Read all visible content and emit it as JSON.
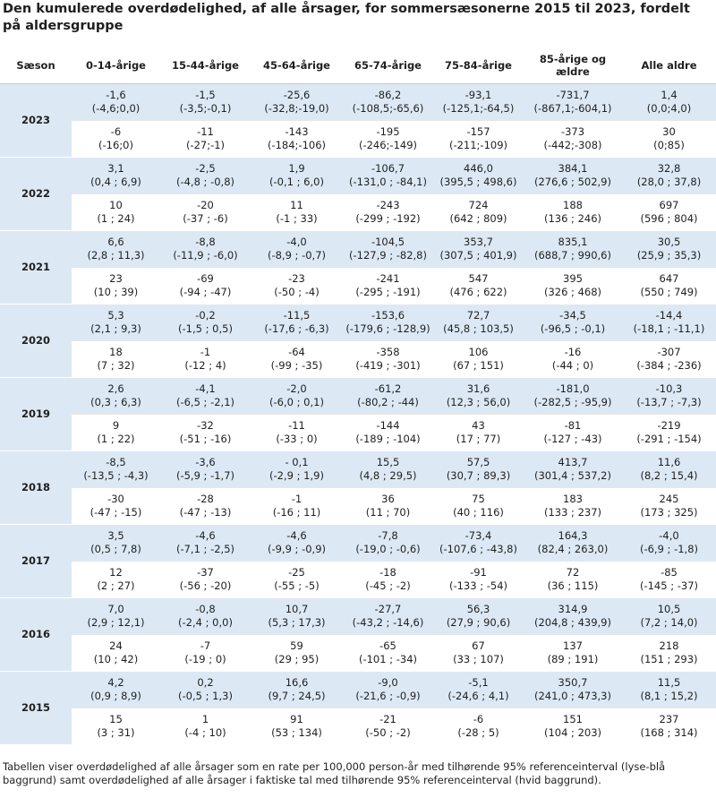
{
  "title": "Den kumulerede overdødelighed, af alle årsager, for sommersæsonerne 2015 til 2023, fordelt på aldersgruppe",
  "columns": [
    "Sæson",
    "0-14-årige",
    "15-44-årige",
    "45-64-årige",
    "65-74-årige",
    "75-84-årige",
    "85-årige og ældre",
    "Alle aldre"
  ],
  "rows": [
    {
      "season": "2023",
      "rate": [
        [
          "-1,6",
          "(-4,6;0,0)"
        ],
        [
          "-1,5",
          "(-3,5;-0,1)"
        ],
        [
          "-25,6",
          "(-32,8;-19,0)"
        ],
        [
          "-86,2",
          "(-108,5;-65,6)"
        ],
        [
          "-93,1",
          "(-125,1;-64,5)"
        ],
        [
          "-731,7",
          "(-867,1;-604,1)"
        ],
        [
          "1,4",
          "(0,0;4,0)"
        ]
      ],
      "count": [
        [
          "-6",
          "(-16;0)"
        ],
        [
          "-11",
          "(-27;-1)"
        ],
        [
          "-143",
          "(-184;-106)"
        ],
        [
          "-195",
          "(-246;-149)"
        ],
        [
          "-157",
          "(-211;-109)"
        ],
        [
          "-373",
          "(-442;-308)"
        ],
        [
          "30",
          "(0;85)"
        ]
      ]
    },
    {
      "season": "2022",
      "rate": [
        [
          "3,1",
          "(0,4 ; 6,9)"
        ],
        [
          "-2,5",
          "(-4,8 ; -0,8)"
        ],
        [
          "1,9",
          "(-0,1 ; 6,0)"
        ],
        [
          "-106,7",
          "(-131,0 ; -84,1)"
        ],
        [
          "446,0",
          "(395,5 ; 498,6)"
        ],
        [
          "384,1",
          "(276,6 ; 502,9)"
        ],
        [
          "32,8",
          "(28,0 ; 37,8)"
        ]
      ],
      "count": [
        [
          "10",
          "(1 ; 24)"
        ],
        [
          "-20",
          "(-37 ; -6)"
        ],
        [
          "11",
          "(-1 ; 33)"
        ],
        [
          "-243",
          "(-299 ; -192)"
        ],
        [
          "724",
          "(642 ; 809)"
        ],
        [
          "188",
          "(136 ; 246)"
        ],
        [
          "697",
          "(596 ; 804)"
        ]
      ]
    },
    {
      "season": "2021",
      "rate": [
        [
          "6,6",
          "(2,8 ; 11,3)"
        ],
        [
          "-8,8",
          "(-11,9 ; -6,0)"
        ],
        [
          "-4,0",
          "(-8,9 ; -0,7)"
        ],
        [
          "-104,5",
          "(-127,9 ; -82,8)"
        ],
        [
          "353,7",
          "(307,5 ; 401,9)"
        ],
        [
          "835,1",
          "(688,7 ; 990,6)"
        ],
        [
          "30,5",
          "(25,9 ; 35,3)"
        ]
      ],
      "count": [
        [
          "23",
          "(10 ; 39)"
        ],
        [
          "-69",
          "(-94 ; -47)"
        ],
        [
          "-23",
          "(-50 ; -4)"
        ],
        [
          "-241",
          "(-295 ; -191)"
        ],
        [
          "547",
          "(476 ; 622)"
        ],
        [
          "395",
          "(326 ; 468)"
        ],
        [
          "647",
          "(550 ; 749)"
        ]
      ]
    },
    {
      "season": "2020",
      "rate": [
        [
          "5,3",
          "(2,1 ; 9,3)"
        ],
        [
          "-0,2",
          "(-1,5 ; 0,5)"
        ],
        [
          "-11,5",
          "(-17,6 ; -6,3)"
        ],
        [
          "-153,6",
          "(-179,6 ; -128,9)"
        ],
        [
          "72,7",
          "(45,8 ; 103,5)"
        ],
        [
          "-34,5",
          "(-96,5 ; -0,1)"
        ],
        [
          "-14,4",
          "(-18,1 ; -11,1)"
        ]
      ],
      "count": [
        [
          "18",
          "(7 ; 32)"
        ],
        [
          "-1",
          "(-12 ; 4)"
        ],
        [
          "-64",
          "(-99 ; -35)"
        ],
        [
          "-358",
          "(-419 ; -301)"
        ],
        [
          "106",
          "(67 ; 151)"
        ],
        [
          "-16",
          "(-44 ; 0)"
        ],
        [
          "-307",
          "(-384 ; -236)"
        ]
      ]
    },
    {
      "season": "2019",
      "rate": [
        [
          "2,6",
          "(0,3 ; 6,3)"
        ],
        [
          "-4,1",
          "(-6,5 ; -2,1)"
        ],
        [
          "-2,0",
          "(-6,0 ; 0,1)"
        ],
        [
          "-61,2",
          "(-80,2 ; -44)"
        ],
        [
          "31,6",
          "(12,3 ; 56,0)"
        ],
        [
          "-181,0",
          "(-282,5 ; -95,9)"
        ],
        [
          "-10,3",
          "(-13,7 ; -7,3)"
        ]
      ],
      "count": [
        [
          "9",
          "(1 ; 22)"
        ],
        [
          "-32",
          "(-51 ; -16)"
        ],
        [
          "-11",
          "(-33 ; 0)"
        ],
        [
          "-144",
          "(-189 ; -104)"
        ],
        [
          "43",
          "(17 ; 77)"
        ],
        [
          "-81",
          "(-127 ; -43)"
        ],
        [
          "-219",
          "(-291 ; -154)"
        ]
      ]
    },
    {
      "season": "2018",
      "rate": [
        [
          "-8,5",
          "(-13,5 ; -4,3)"
        ],
        [
          "-3,6",
          "(-5,9 ; -1,7)"
        ],
        [
          "- 0,1",
          "(-2,9 ; 1,9)"
        ],
        [
          "15,5",
          "(4,8 ; 29,5)"
        ],
        [
          "57,5",
          "(30,7 ; 89,3)"
        ],
        [
          "413,7",
          "(301,4 ; 537,2)"
        ],
        [
          "11,6",
          "(8,2 ; 15,4)"
        ]
      ],
      "count": [
        [
          "-30",
          "(-47 ; -15)"
        ],
        [
          "-28",
          "(-47 ; -13)"
        ],
        [
          "-1",
          "(-16 ; 11)"
        ],
        [
          "36",
          "(11 ; 70)"
        ],
        [
          "75",
          "(40 ; 116)"
        ],
        [
          "183",
          "(133 ; 237)"
        ],
        [
          "245",
          "(173 ; 325)"
        ]
      ]
    },
    {
      "season": "2017",
      "rate": [
        [
          "3,5",
          "(0,5 ; 7,8)"
        ],
        [
          "-4,6",
          "(-7,1 ; -2,5)"
        ],
        [
          "-4,6",
          "(-9,9 ; -0,9)"
        ],
        [
          "-7,8",
          "(-19,0 ; -0,6)"
        ],
        [
          "-73,4",
          "(-107,6 ; -43,8)"
        ],
        [
          "164,3",
          "(82,4 ; 263,0)"
        ],
        [
          "-4,0",
          "(-6,9 ; -1,8)"
        ]
      ],
      "count": [
        [
          "12",
          "(2 ; 27)"
        ],
        [
          "-37",
          "(-56 ; -20)"
        ],
        [
          "-25",
          "(-55 ; -5)"
        ],
        [
          "-18",
          "(-45 ; -2)"
        ],
        [
          "-91",
          "(-133 ; -54)"
        ],
        [
          "72",
          "(36 ; 115)"
        ],
        [
          "-85",
          "(-145 ; -37)"
        ]
      ]
    },
    {
      "season": "2016",
      "rate": [
        [
          "7,0",
          "(2,9 ; 12,1)"
        ],
        [
          "-0,8",
          "(-2,4 ; 0,0)"
        ],
        [
          "10,7",
          "(5,3 ; 17,3)"
        ],
        [
          "-27,7",
          "(-43,2 ; -14,6)"
        ],
        [
          "56,3",
          "(27,9 ; 90,6)"
        ],
        [
          "314,9",
          "(204,8 ; 439,9)"
        ],
        [
          "10,5",
          "(7,2 ; 14,0)"
        ]
      ],
      "count": [
        [
          "24",
          "(10 ; 42)"
        ],
        [
          "-7",
          "(-19 ; 0)"
        ],
        [
          "59",
          "(29 ; 95)"
        ],
        [
          "-65",
          "(-101 ; -34)"
        ],
        [
          "67",
          "(33 ; 107)"
        ],
        [
          "137",
          "(89 ; 191)"
        ],
        [
          "218",
          "(151 ; 293)"
        ]
      ]
    },
    {
      "season": "2015",
      "rate": [
        [
          "4,2",
          "(0,9 ; 8,9)"
        ],
        [
          "0,2",
          "(-0,5 ; 1,3)"
        ],
        [
          "16,6",
          "(9,7 ; 24,5)"
        ],
        [
          "-9,0",
          "(-21,6 ; -0,9)"
        ],
        [
          "-5,1",
          "(-24,6 ; 4,1)"
        ],
        [
          "350,7",
          "(241,0 ; 473,3)"
        ],
        [
          "11,5",
          "(8,1 ; 15,2)"
        ]
      ],
      "count": [
        [
          "15",
          "(3 ; 31)"
        ],
        [
          "1",
          "(-4 ; 10)"
        ],
        [
          "91",
          "(53 ; 134)"
        ],
        [
          "-21",
          "(-50 ; -2)"
        ],
        [
          "-6",
          "(-28 ; 5)"
        ],
        [
          "151",
          "(104 ; 203)"
        ],
        [
          "237",
          "(168 ; 314)"
        ]
      ]
    }
  ],
  "footnote": "Tabellen viser overdødelighed af alle årsager som en rate per 100,000 person-år med tilhørende 95% referenceinterval (lyse-blå baggrund) samt overdødelighed af alle årsager i faktiske tal med tilhørende 95% referenceinterval (hvid baggrund).",
  "colors": {
    "rate_background": "#dce9f5",
    "count_background": "#ffffff",
    "text": "#1f1f1f"
  }
}
